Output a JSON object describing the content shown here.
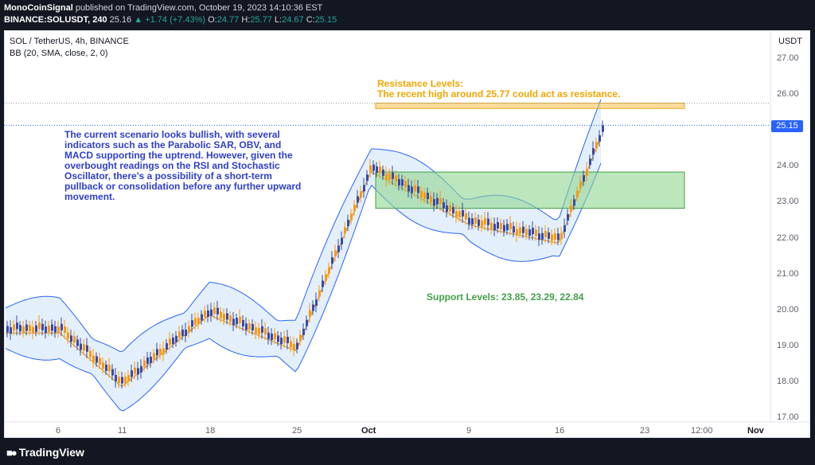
{
  "header": {
    "author": "MonoCoinSignal",
    "published_text": " published on TradingView.com, October 19, 2023 14:10:36 EST",
    "symbol_line": "BINANCE:SOLUSDT, 240",
    "last": "25.16",
    "change": "+1.74 (+7.43%)",
    "o_label": "O:",
    "o": "24.77",
    "h_label": "H:",
    "h": "25.77",
    "l_label": "L:",
    "l": "24.67",
    "c_label": "C:",
    "c": "25.15"
  },
  "chart_header": {
    "symbol_title": "SOL / TetherUS, 4h, BINANCE",
    "indicator": "BB (20, SMA, close, 2, 0)"
  },
  "annotations": {
    "analysis_note": "The current scenario looks bullish, with several indicators such as the Parabolic SAR, OBV, and MACD supporting the uptrend. However, given the overbought readings on the RSI and Stochastic Oscillator, there's a possibility of a short-term pullback or consolidation before any further upward movement.",
    "resistance_title": "Resistance Levels:",
    "resistance_body": "The recent high around 25.77 could act as resistance.",
    "support_text": "Support Levels: 23.85, 23.29, 22.84"
  },
  "price_axis": {
    "currency": "USDT",
    "current_price": "25.15",
    "labels": [
      "27.00",
      "26.00",
      "25.00",
      "24.00",
      "23.00",
      "22.00",
      "21.00",
      "20.00",
      "19.00",
      "18.00",
      "17.00"
    ]
  },
  "time_axis": {
    "labels": [
      "6",
      "11",
      "18",
      "25",
      "Oct",
      "9",
      "16",
      "23",
      "12:00",
      "Nov"
    ]
  },
  "colors": {
    "background": "#ffffff",
    "up_candle": "#3949ab",
    "down_candle": "#ff9800",
    "bb_band": "#2962ff",
    "bb_basis": "#e08e1b",
    "bb_fill": "#e3f0fb",
    "resistance_zone": "#f5c04a",
    "support_zone": "#8fd58f",
    "price_tag": "#2962ff"
  },
  "footer": {
    "brand": "TradingView",
    "logo_icon": "tradingview-logo-icon"
  },
  "chart_data": {
    "type": "candlestick",
    "symbol": "SOLUSDT",
    "interval": "4h",
    "x_ticks": [
      "6",
      "11",
      "18",
      "25",
      "Oct",
      "9",
      "16",
      "23",
      "12:00",
      "Nov"
    ],
    "y_range": [
      17,
      27.5
    ],
    "current_price": 25.15,
    "session_high": 25.77,
    "resistance_zone": [
      25.62,
      25.77
    ],
    "support_zone": [
      22.84,
      23.85
    ],
    "support_levels": [
      23.85,
      23.29,
      22.84
    ],
    "price_path": [
      [
        "6",
        19.5
      ],
      [
        "11",
        18.0
      ],
      [
        "18",
        20.0
      ],
      [
        "25",
        19.0
      ],
      [
        "Oct",
        24.0
      ],
      [
        "9",
        22.5
      ],
      [
        "16",
        22.0
      ],
      [
        "19 Oct",
        25.15
      ]
    ]
  }
}
